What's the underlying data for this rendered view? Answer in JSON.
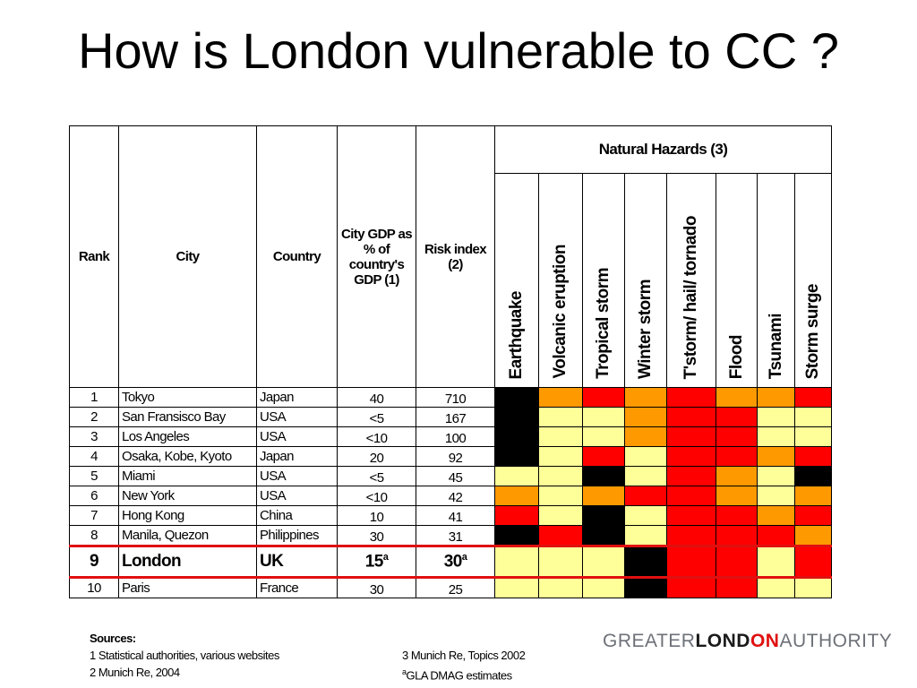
{
  "slide": {
    "title": "How is London vulnerable to CC ?"
  },
  "table": {
    "headers": {
      "rank": "Rank",
      "city": "City",
      "country": "Country",
      "gdp": "City GDP as % of country's GDP (1)",
      "risk": "Risk index (2)",
      "hazards_group": "Natural Hazards (3)",
      "hazards": [
        "Earthquake",
        "Volcanic eruption",
        "Tropical storm",
        "Winter storm",
        "T'storm/ hail/ tornado",
        "Flood",
        "Tsunami",
        "Storm surge"
      ]
    },
    "hazard_colors": {
      "K": "#000000",
      "R": "#ff0000",
      "O": "#ff9900",
      "Y": "#ffff99"
    },
    "rows": [
      {
        "rank": "1",
        "city": "Tokyo",
        "country": "Japan",
        "gdp": "40",
        "gdp_sup": "",
        "risk": "710",
        "risk_sup": "",
        "hazards": [
          "K",
          "O",
          "R",
          "O",
          "R",
          "O",
          "O",
          "R"
        ]
      },
      {
        "rank": "2",
        "city": "San Fransisco Bay",
        "country": "USA",
        "gdp": "<5",
        "gdp_sup": "",
        "risk": "167",
        "risk_sup": "",
        "hazards": [
          "K",
          "Y",
          "Y",
          "O",
          "R",
          "R",
          "Y",
          "Y"
        ]
      },
      {
        "rank": "3",
        "city": "Los Angeles",
        "country": "USA",
        "gdp": "<10",
        "gdp_sup": "",
        "risk": "100",
        "risk_sup": "",
        "hazards": [
          "K",
          "Y",
          "Y",
          "O",
          "R",
          "R",
          "Y",
          "Y"
        ]
      },
      {
        "rank": "4",
        "city": "Osaka, Kobe, Kyoto",
        "country": "Japan",
        "gdp": "20",
        "gdp_sup": "",
        "risk": "92",
        "risk_sup": "",
        "hazards": [
          "K",
          "Y",
          "R",
          "Y",
          "R",
          "R",
          "O",
          "R"
        ]
      },
      {
        "rank": "5",
        "city": "Miami",
        "country": "USA",
        "gdp": "<5",
        "gdp_sup": "",
        "risk": "45",
        "risk_sup": "",
        "hazards": [
          "Y",
          "Y",
          "K",
          "Y",
          "R",
          "O",
          "Y",
          "K"
        ]
      },
      {
        "rank": "6",
        "city": "New York",
        "country": "USA",
        "gdp": "<10",
        "gdp_sup": "",
        "risk": "42",
        "risk_sup": "",
        "hazards": [
          "O",
          "Y",
          "O",
          "R",
          "R",
          "O",
          "Y",
          "O"
        ]
      },
      {
        "rank": "7",
        "city": "Hong Kong",
        "country": "China",
        "gdp": "10",
        "gdp_sup": "",
        "risk": "41",
        "risk_sup": "",
        "hazards": [
          "R",
          "Y",
          "K",
          "Y",
          "R",
          "R",
          "O",
          "R"
        ]
      },
      {
        "rank": "8",
        "city": "Manila, Quezon",
        "country": "Philippines",
        "gdp": "30",
        "gdp_sup": "",
        "risk": "31",
        "risk_sup": "",
        "hazards": [
          "K",
          "R",
          "K",
          "Y",
          "R",
          "R",
          "R",
          "O"
        ]
      },
      {
        "rank": "9",
        "city": "London",
        "country": "UK",
        "gdp": "15",
        "gdp_sup": "a",
        "risk": "30",
        "risk_sup": "a",
        "hazards": [
          "Y",
          "Y",
          "Y",
          "K",
          "R",
          "R",
          "Y",
          "R"
        ]
      },
      {
        "rank": "10",
        "city": "Paris",
        "country": "France",
        "gdp": "30",
        "gdp_sup": "",
        "risk": "25",
        "risk_sup": "",
        "hazards": [
          "Y",
          "Y",
          "Y",
          "K",
          "R",
          "R",
          "Y",
          "Y"
        ]
      }
    ]
  },
  "sources": {
    "heading": "Sources:",
    "s1": "1 Statistical authorities, various websites",
    "s2": "2 Munich Re, 2004",
    "s3": "3 Munich Re, Topics 2002",
    "s4_sup": "a",
    "s4": "GLA DMAG estimates"
  },
  "logo": {
    "part1": "GREATER",
    "part2": "LOND",
    "part3": "ON",
    "part4": "AUTHORITY"
  }
}
